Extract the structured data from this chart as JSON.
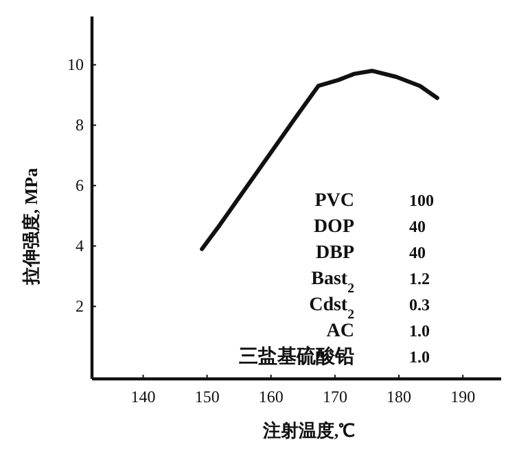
{
  "chart_data": {
    "type": "line",
    "xlabel": "注射温度,℃",
    "ylabel": "拉伸强度, MPa",
    "x": [
      149.2,
      152,
      156,
      160,
      164,
      167.4,
      170.6,
      173,
      175.8,
      179.6,
      183.3,
      186
    ],
    "values": [
      3.9,
      4.7,
      5.9,
      7.1,
      8.3,
      9.3,
      9.5,
      9.7,
      9.8,
      9.6,
      9.3,
      8.9
    ],
    "color": "#111111",
    "line_style": "solid",
    "marker": "none",
    "xlim": [
      132,
      196
    ],
    "ylim": [
      -0.4,
      11.6
    ],
    "xticks": [
      140,
      150,
      160,
      170,
      180,
      190
    ],
    "yticks": [
      2,
      4,
      6,
      8,
      10
    ],
    "annotations": [
      "PVC",
      "100",
      "DOP",
      "40",
      "DBP",
      "40",
      "Bast$_{2}$",
      "1.2",
      "Cdst$_{2}$",
      "0.3",
      "AC",
      "1.0",
      "三盐基硫酸铅",
      "1.0"
    ]
  }
}
